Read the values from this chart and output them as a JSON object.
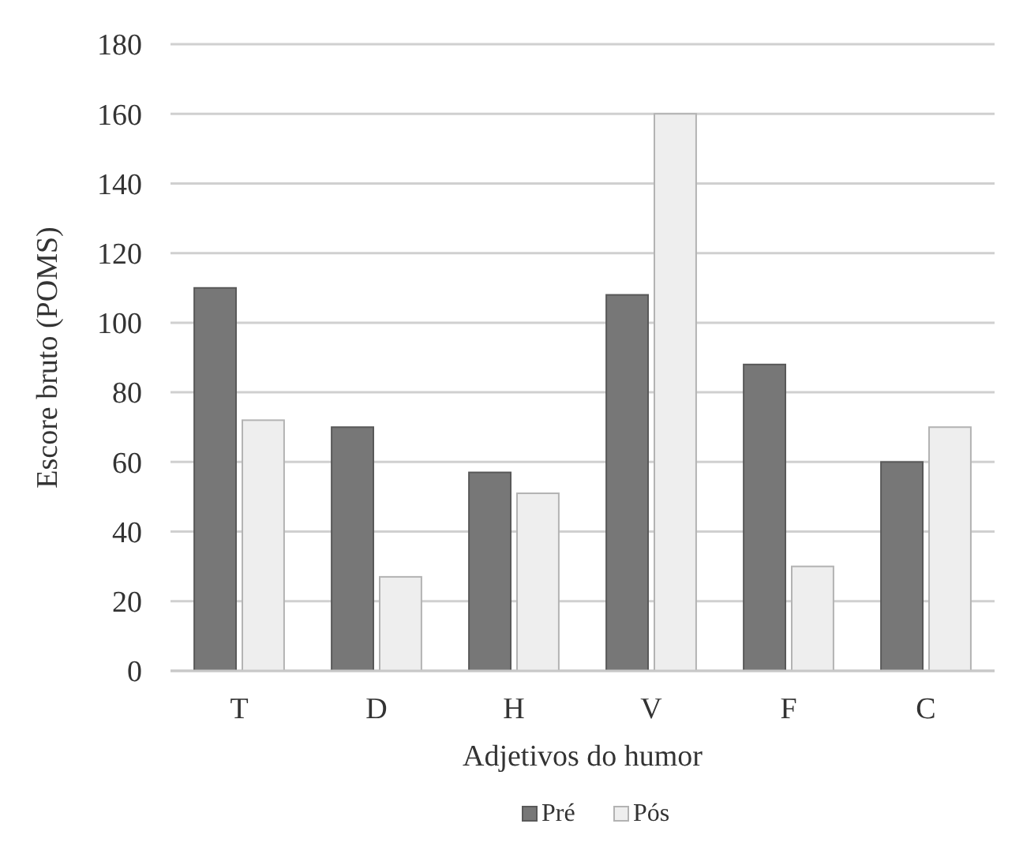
{
  "chart_data": {
    "type": "bar",
    "xlabel": "Adjetivos do humor",
    "ylabel": "Escore bruto (POMS)",
    "categories": [
      "T",
      "D",
      "H",
      "V",
      "F",
      "C"
    ],
    "series": [
      {
        "name": "Pré",
        "color": "#777777",
        "values": [
          110,
          70,
          57,
          108,
          88,
          60
        ]
      },
      {
        "name": "Pós",
        "color": "#eeeeee",
        "values": [
          72,
          27,
          51,
          160,
          30,
          70
        ]
      }
    ],
    "ylim": [
      0,
      180
    ],
    "yticks": [
      0,
      20,
      40,
      60,
      80,
      100,
      120,
      140,
      160,
      180
    ],
    "grid": "y",
    "legend": "bottom"
  }
}
